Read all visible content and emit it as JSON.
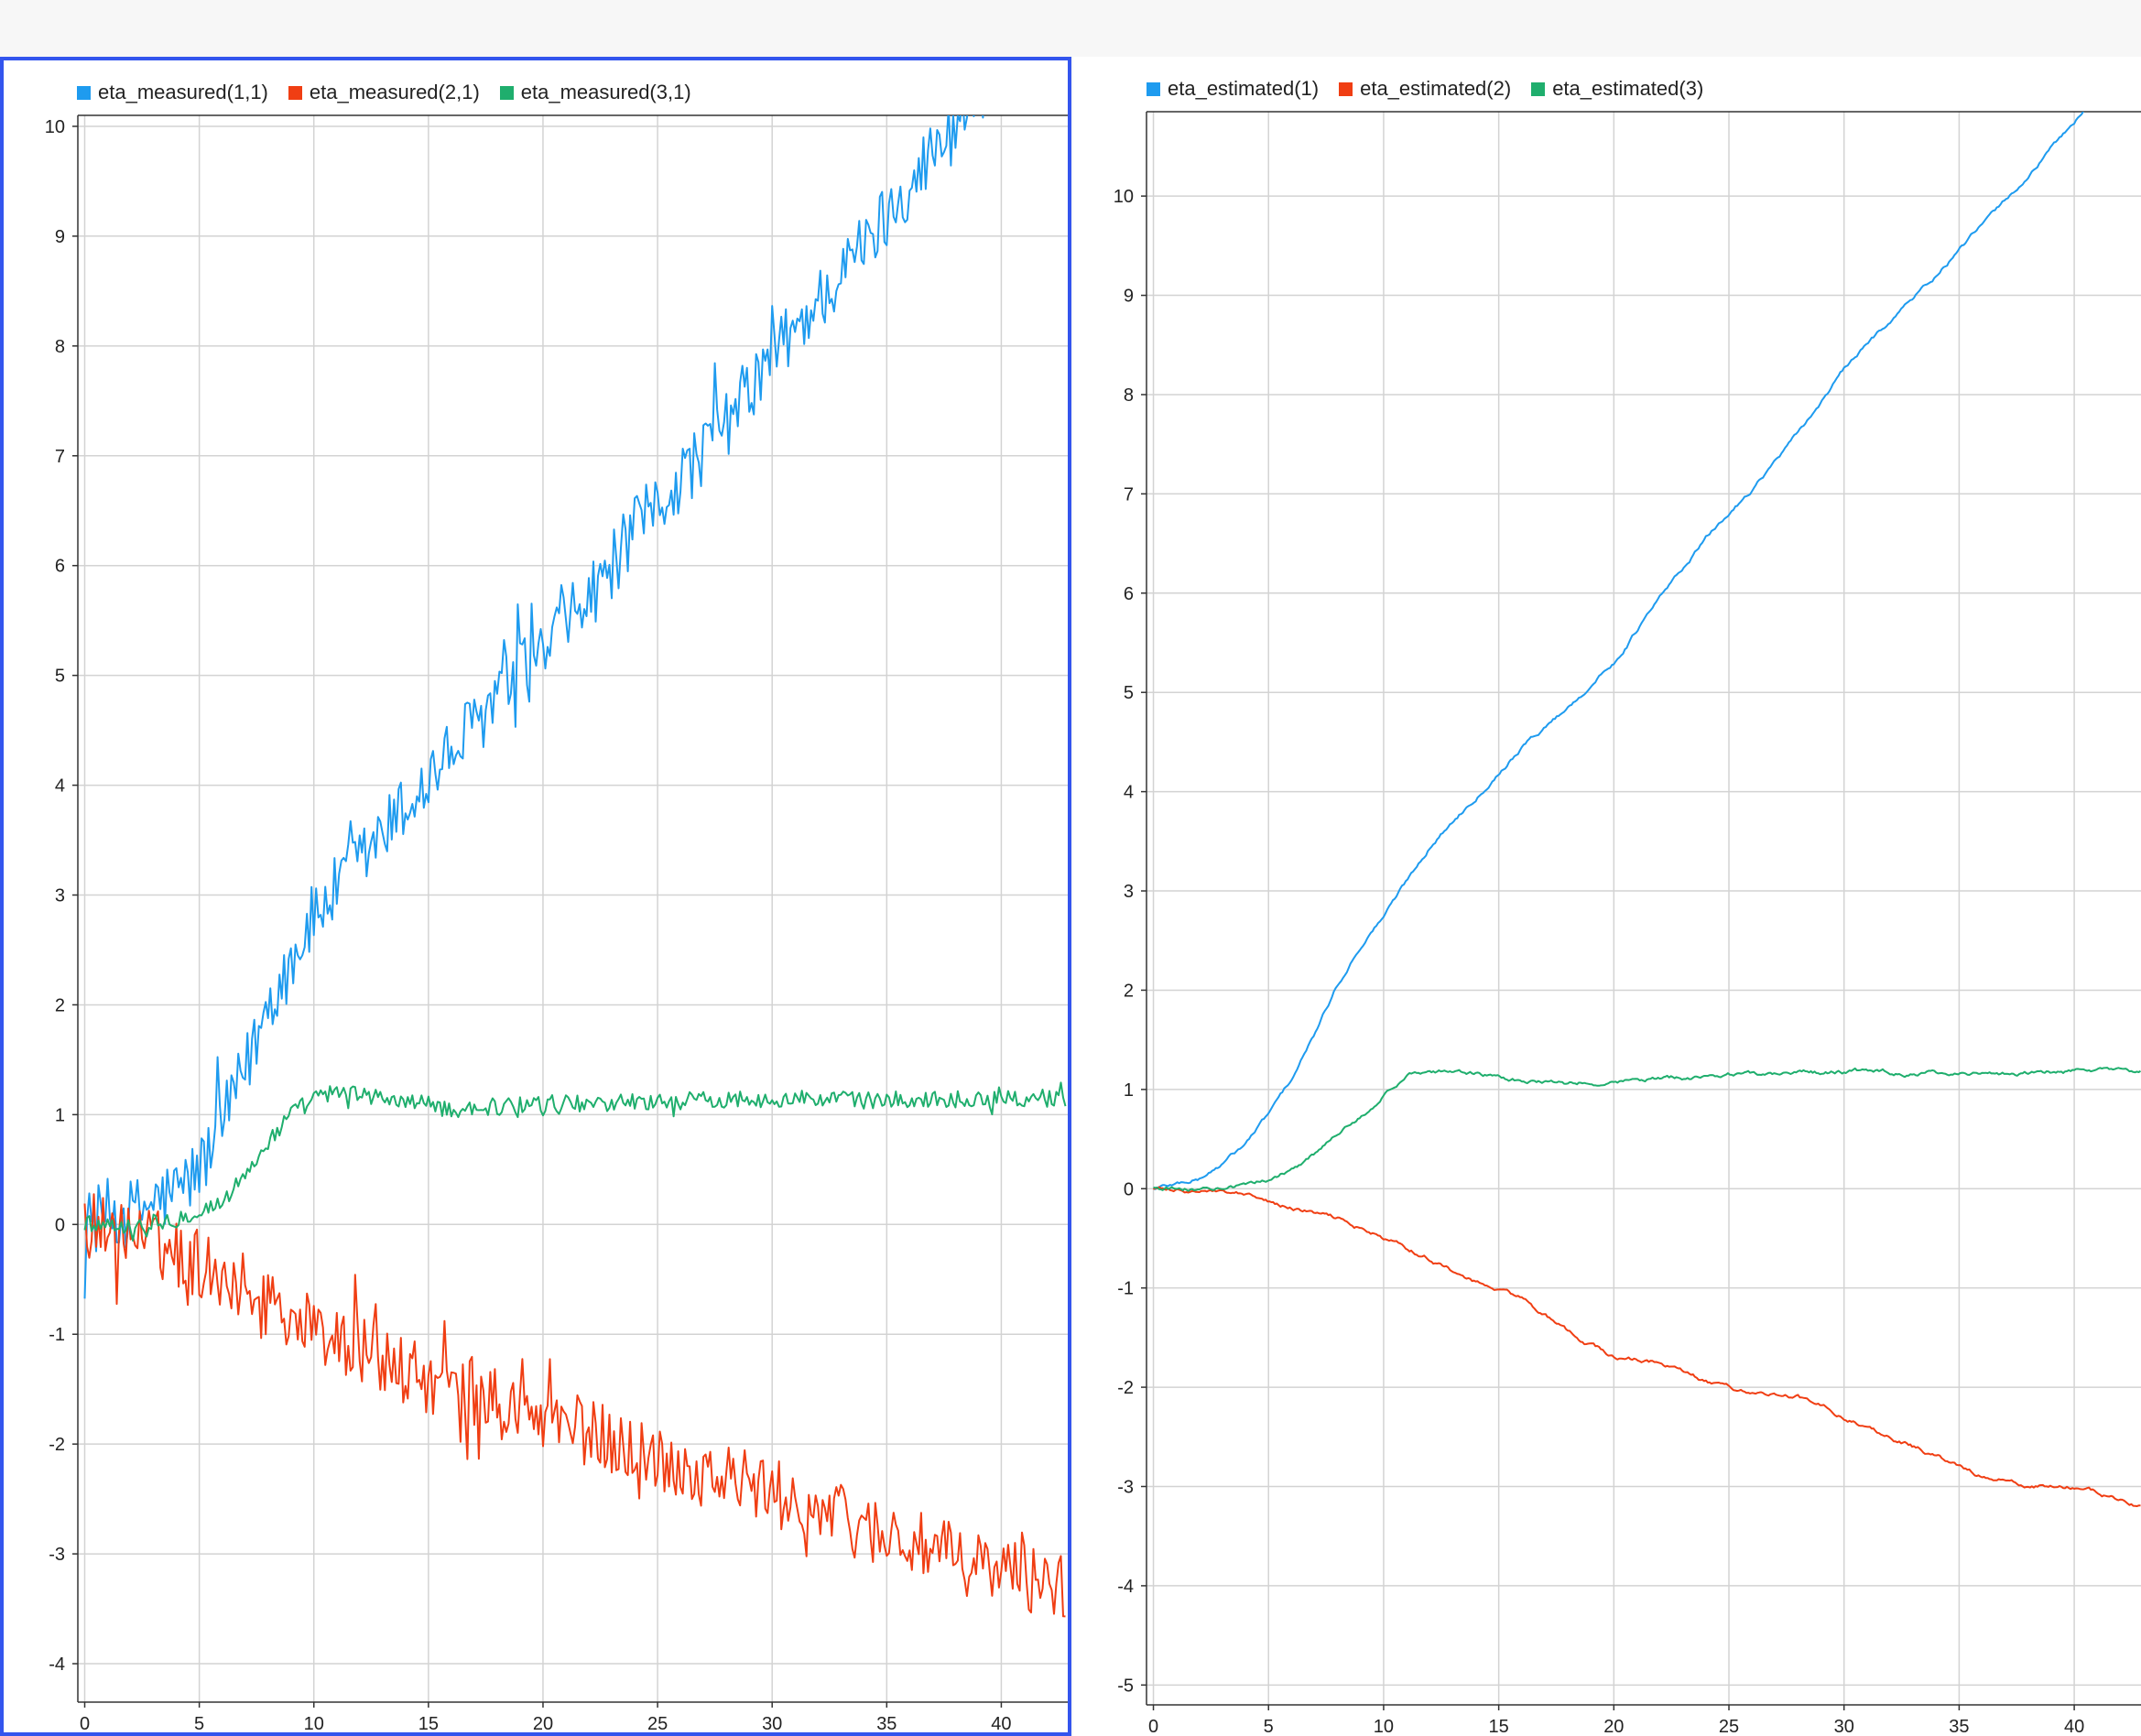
{
  "chart_data": [
    {
      "type": "line",
      "title": "",
      "xlabel": "",
      "ylabel": "",
      "xlim": [
        -0.3,
        42.9
      ],
      "ylim": [
        -4.35,
        10.1
      ],
      "x_ticks": [
        0,
        5,
        10,
        15,
        20,
        25,
        30,
        35,
        40
      ],
      "y_ticks": [
        -4,
        -3,
        -2,
        -1,
        0,
        1,
        2,
        3,
        4,
        5,
        6,
        7,
        8,
        9,
        10
      ],
      "grid": true,
      "legend_position": "top-left",
      "noise": true,
      "series": [
        {
          "name": "eta_measured(1,1)",
          "color": "#1e9bef",
          "x": [
            0,
            1,
            2,
            3,
            4,
            5,
            6,
            7,
            8,
            9,
            10,
            12,
            14,
            16,
            18,
            20,
            22,
            24,
            26,
            28,
            30,
            32,
            34,
            36,
            38,
            40,
            42.9
          ],
          "y": [
            0.0,
            0.1,
            0.1,
            0.2,
            0.3,
            0.5,
            0.9,
            1.4,
            2.0,
            2.4,
            2.8,
            3.3,
            3.8,
            4.3,
            4.8,
            5.2,
            5.7,
            6.3,
            6.8,
            7.3,
            7.9,
            8.4,
            8.9,
            9.5,
            10.0,
            10.6,
            11.3
          ]
        },
        {
          "name": "eta_measured(2,1)",
          "color": "#f03e13",
          "x": [
            0,
            2,
            4,
            6,
            8,
            10,
            12,
            14,
            16,
            18,
            20,
            22,
            24,
            26,
            28,
            30,
            32,
            34,
            36,
            38,
            40,
            42.9
          ],
          "y": [
            0.0,
            -0.1,
            -0.25,
            -0.45,
            -0.7,
            -0.95,
            -1.15,
            -1.35,
            -1.5,
            -1.65,
            -1.75,
            -1.9,
            -2.05,
            -2.2,
            -2.3,
            -2.45,
            -2.6,
            -2.75,
            -2.9,
            -3.05,
            -3.15,
            -3.3
          ]
        },
        {
          "name": "eta_measured(3,1)",
          "color": "#1fae6d",
          "x": [
            0,
            2,
            4,
            6,
            7,
            8,
            9,
            10,
            11,
            12,
            14,
            16,
            20,
            25,
            30,
            35,
            40,
            42.9
          ],
          "y": [
            0.0,
            0.0,
            0.05,
            0.2,
            0.45,
            0.75,
            1.0,
            1.15,
            1.2,
            1.18,
            1.12,
            1.05,
            1.1,
            1.12,
            1.15,
            1.13,
            1.15,
            1.15
          ]
        }
      ]
    },
    {
      "type": "line",
      "title": "",
      "xlabel": "",
      "ylabel": "",
      "xlim": [
        -0.3,
        42.9
      ],
      "ylim": [
        -5.2,
        10.85
      ],
      "x_ticks": [
        0,
        5,
        10,
        15,
        20,
        25,
        30,
        35,
        40
      ],
      "y_ticks": [
        -5,
        -4,
        -3,
        -2,
        -1,
        0,
        1,
        2,
        3,
        4,
        5,
        6,
        7,
        8,
        9,
        10
      ],
      "grid": true,
      "legend_position": "top-left",
      "noise": false,
      "series": [
        {
          "name": "eta_estimated(1)",
          "color": "#1e9bef",
          "x": [
            0,
            1,
            2,
            3,
            4,
            5,
            6,
            7,
            8,
            9,
            10,
            12,
            14,
            16,
            18,
            20,
            22,
            24,
            26,
            28,
            30,
            32,
            34,
            36,
            38,
            40,
            42.9
          ],
          "y": [
            0.0,
            0.05,
            0.1,
            0.25,
            0.45,
            0.75,
            1.1,
            1.55,
            2.05,
            2.45,
            2.75,
            3.45,
            3.95,
            4.45,
            4.85,
            5.3,
            5.95,
            6.55,
            7.05,
            7.6,
            8.25,
            8.75,
            9.2,
            9.7,
            10.2,
            10.75,
            11.6
          ]
        },
        {
          "name": "eta_estimated(2)",
          "color": "#f03e13",
          "x": [
            0,
            2,
            4,
            6,
            8,
            10,
            12,
            14,
            16,
            18,
            20,
            22,
            24,
            26,
            28,
            30,
            32,
            34,
            36,
            38,
            40,
            42.9
          ],
          "y": [
            0.0,
            -0.02,
            -0.08,
            -0.2,
            -0.3,
            -0.5,
            -0.7,
            -0.95,
            -1.1,
            -1.45,
            -1.7,
            -1.75,
            -1.95,
            -2.05,
            -2.1,
            -2.3,
            -2.5,
            -2.7,
            -2.9,
            -3.0,
            -3.0,
            -3.2
          ]
        },
        {
          "name": "eta_estimated(3)",
          "color": "#1fae6d",
          "x": [
            0,
            2,
            4,
            5,
            6,
            7,
            8,
            9,
            10,
            11,
            12,
            14,
            16,
            18,
            20,
            25,
            30,
            35,
            40,
            42.9
          ],
          "y": [
            0.0,
            0.0,
            0.03,
            0.1,
            0.2,
            0.35,
            0.55,
            0.75,
            0.95,
            1.12,
            1.2,
            1.15,
            1.08,
            1.05,
            1.08,
            1.15,
            1.18,
            1.16,
            1.18,
            1.18
          ]
        }
      ]
    }
  ]
}
